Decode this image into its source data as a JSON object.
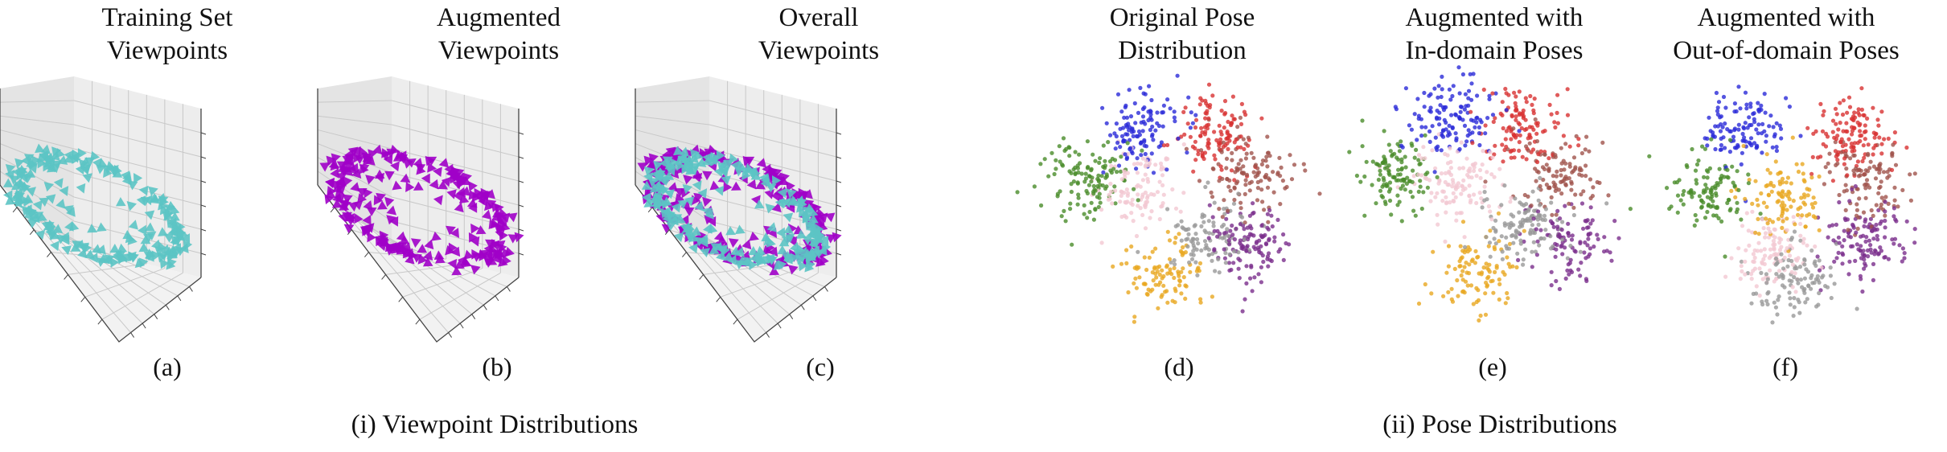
{
  "colors": {
    "training": "#5cc4c4",
    "augmented": "#a000c8",
    "clusters": [
      "#2a2ad8",
      "#d83232",
      "#4a8c2a",
      "#f2c8d2",
      "#a0544c",
      "#999999",
      "#7a2e8c",
      "#e8a820"
    ]
  },
  "panels": [
    {
      "id": "a",
      "title_line1": "Training Set",
      "title_line2": "Viewpoints",
      "label": "(a)"
    },
    {
      "id": "b",
      "title_line1": "Augmented",
      "title_line2": "Viewpoints",
      "label": "(b)"
    },
    {
      "id": "c",
      "title_line1": "Overall",
      "title_line2": "Viewpoints",
      "label": "(c)"
    },
    {
      "id": "d",
      "title_line1": "Original Pose",
      "title_line2": "Distribution",
      "label": "(d)"
    },
    {
      "id": "e",
      "title_line1": "Augmented with",
      "title_line2": "In-domain Poses",
      "label": "(e)"
    },
    {
      "id": "f",
      "title_line1": "Augmented with",
      "title_line2": "Out-of-domain Poses",
      "label": "(f)"
    }
  ],
  "sections": {
    "viewpoint": "(i) Viewpoint Distributions",
    "pose": "(ii) Pose Distributions"
  },
  "chart_data": [
    {
      "type": "scatter",
      "panel": "a",
      "projection": "3d",
      "series": [
        {
          "color": "#5cc4c4",
          "marker": "triangle",
          "count": 230
        }
      ]
    },
    {
      "type": "scatter",
      "panel": "b",
      "projection": "3d",
      "series": [
        {
          "color": "#a000c8",
          "marker": "triangle",
          "count": 260
        }
      ]
    },
    {
      "type": "scatter",
      "panel": "c",
      "projection": "3d",
      "series": [
        {
          "color": "#5cc4c4",
          "marker": "triangle",
          "count": 230
        },
        {
          "color": "#a000c8",
          "marker": "triangle",
          "count": 260
        }
      ]
    },
    {
      "type": "scatter",
      "panel": "d",
      "clusters": 8,
      "count": 900
    },
    {
      "type": "scatter",
      "panel": "e",
      "clusters": 8,
      "count": 900
    },
    {
      "type": "scatter",
      "panel": "f",
      "clusters": 8,
      "count": 900
    }
  ]
}
